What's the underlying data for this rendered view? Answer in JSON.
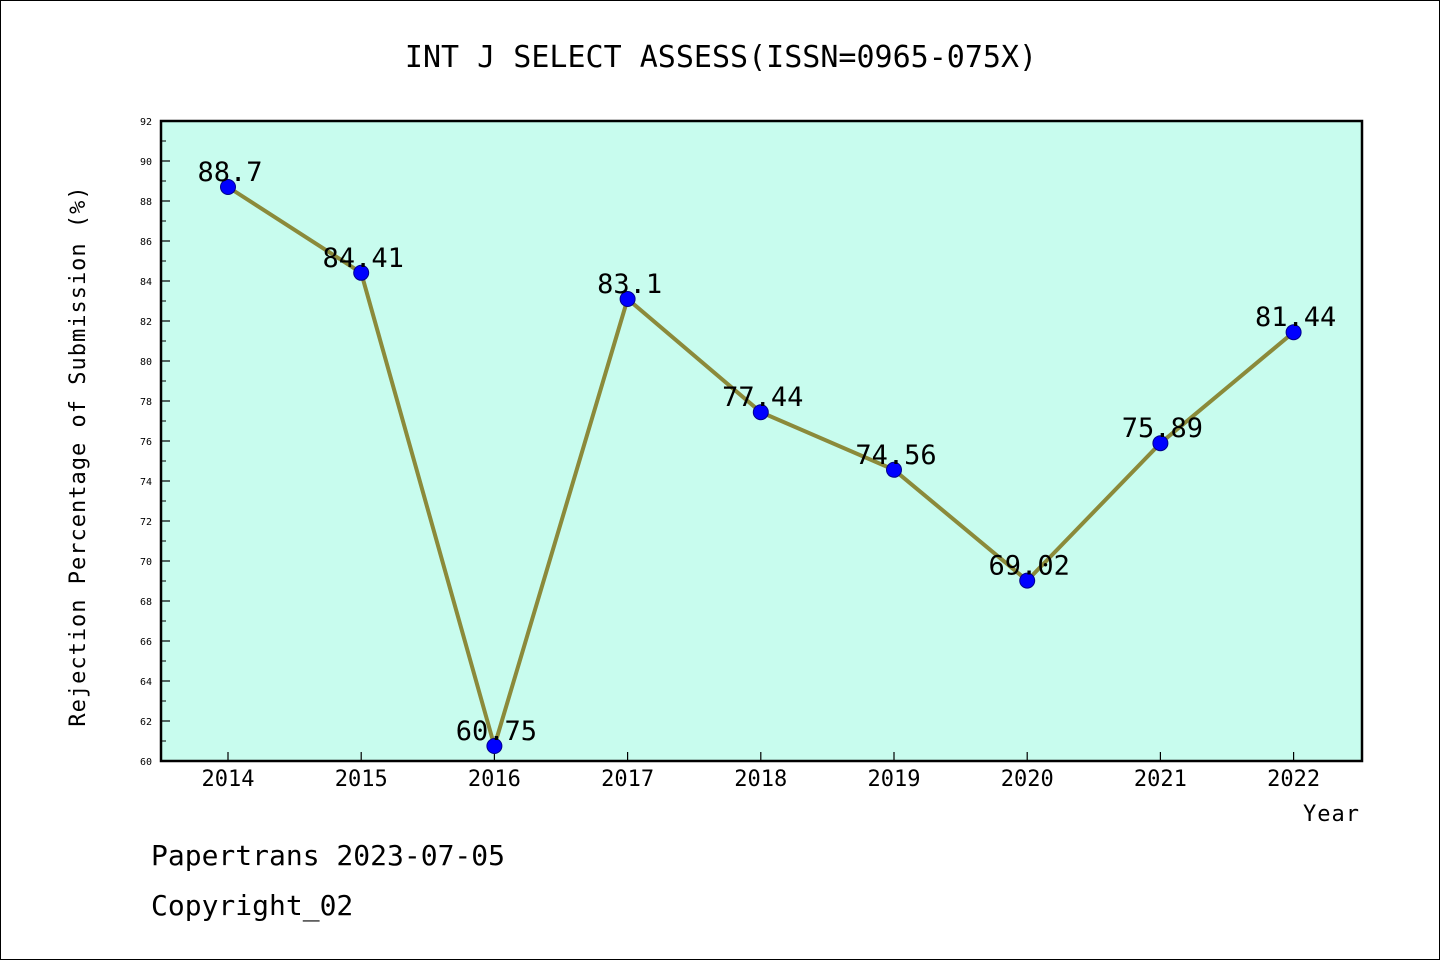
{
  "chart_data": {
    "type": "line",
    "title": "INT J SELECT ASSESS(ISSN=0965-075X)",
    "xlabel": "Year",
    "ylabel": "Rejection Percentage of Submission (%)",
    "categories": [
      "2014",
      "2015",
      "2016",
      "2017",
      "2018",
      "2019",
      "2020",
      "2021",
      "2022"
    ],
    "values": [
      88.7,
      84.41,
      60.75,
      83.1,
      77.44,
      74.56,
      69.02,
      75.89,
      81.44
    ],
    "data_labels": [
      "88.7",
      "84.41",
      "60.75",
      "83.1",
      "77.44",
      "74.56",
      "69.02",
      "75.89",
      "81.44"
    ],
    "ylim": [
      60,
      92
    ],
    "y_ticks": [
      60,
      62,
      64,
      66,
      68,
      70,
      72,
      74,
      76,
      78,
      80,
      82,
      84,
      86,
      88,
      90,
      92
    ],
    "grid": false,
    "legend": "none",
    "colors": {
      "plot_background": "#c8fcee",
      "line": "#8b8a3a",
      "marker": "#0000ff"
    }
  },
  "footer": {
    "line1": "Papertrans 2023-07-05",
    "line2": "Copyright_02"
  }
}
